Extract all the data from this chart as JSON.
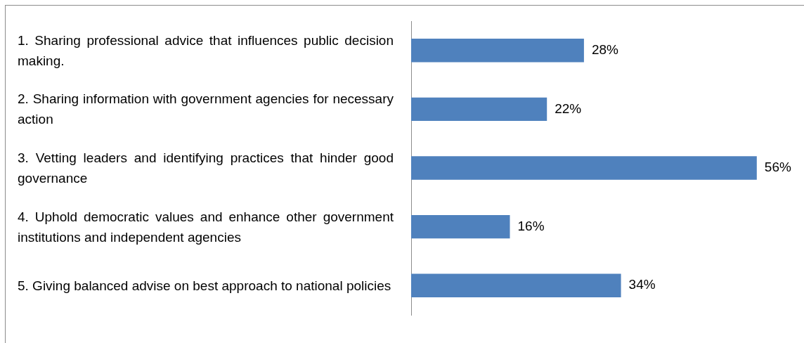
{
  "chart_data": {
    "type": "bar",
    "orientation": "horizontal",
    "categories": [
      "1. Sharing professional advice that influences public decision making.",
      "2. Sharing information with government agencies for necessary action",
      "3. Vetting leaders and identifying practices that hinder good governance",
      "4. Uphold democratic values and enhance other government institutions and independent agencies",
      "5. Giving balanced advise on best approach to national policies"
    ],
    "values": [
      28,
      22,
      56,
      16,
      34
    ],
    "value_labels": [
      "28%",
      "22%",
      "56%",
      "16%",
      "34%"
    ],
    "color": "#4f81bd",
    "grid": false,
    "legend": false
  }
}
